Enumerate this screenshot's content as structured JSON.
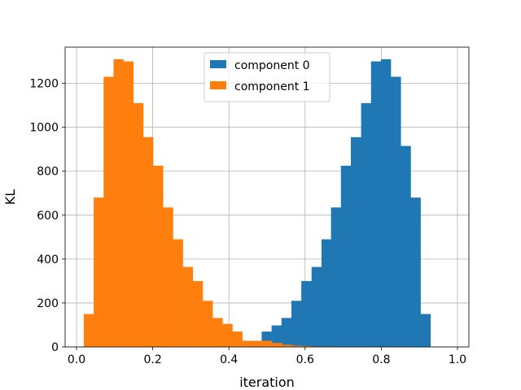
{
  "chart_data": {
    "type": "histogram",
    "title": "",
    "xlabel": "iteration",
    "ylabel": "KL",
    "xlim": [
      -0.03,
      1.03
    ],
    "ylim": [
      0,
      1365
    ],
    "xticks": [
      0.0,
      0.2,
      0.4,
      0.6,
      0.8,
      1.0
    ],
    "xtick_labels": [
      "0.0",
      "0.2",
      "0.4",
      "0.6",
      "0.8",
      "1.0"
    ],
    "yticks": [
      0,
      200,
      400,
      600,
      800,
      1000,
      1200
    ],
    "ytick_labels": [
      "0",
      "200",
      "400",
      "600",
      "800",
      "1000",
      "1200"
    ],
    "grid": true,
    "legend_position": "top-center",
    "series": [
      {
        "name": "component 0",
        "color": "#1f77b4",
        "bin_edges": [
          0.33,
          0.356,
          0.382,
          0.408,
          0.434,
          0.46,
          0.486,
          0.512,
          0.538,
          0.564,
          0.59,
          0.617,
          0.643,
          0.668,
          0.694,
          0.72,
          0.747,
          0.773,
          0.799,
          0.825,
          0.851,
          0.877,
          0.903,
          0.929,
          0.955,
          0.981
        ],
        "counts": [
          2,
          6,
          10,
          18,
          28,
          28,
          70,
          98,
          132,
          210,
          300,
          364,
          490,
          635,
          825,
          955,
          1110,
          1300,
          1310,
          1230,
          915,
          680,
          150,
          0,
          0
        ]
      },
      {
        "name": "component 1",
        "color": "#ff7f0e",
        "bin_edges": [
          0.019,
          0.045,
          0.071,
          0.097,
          0.123,
          0.149,
          0.175,
          0.201,
          0.227,
          0.253,
          0.279,
          0.305,
          0.331,
          0.357,
          0.383,
          0.409,
          0.435,
          0.461,
          0.487,
          0.513,
          0.539,
          0.565,
          0.591,
          0.617,
          0.643,
          0.669
        ],
        "counts": [
          150,
          680,
          1230,
          1310,
          1300,
          1110,
          955,
          825,
          635,
          490,
          364,
          300,
          210,
          132,
          105,
          70,
          28,
          28,
          28,
          18,
          10,
          6,
          4,
          2,
          2
        ]
      }
    ]
  }
}
